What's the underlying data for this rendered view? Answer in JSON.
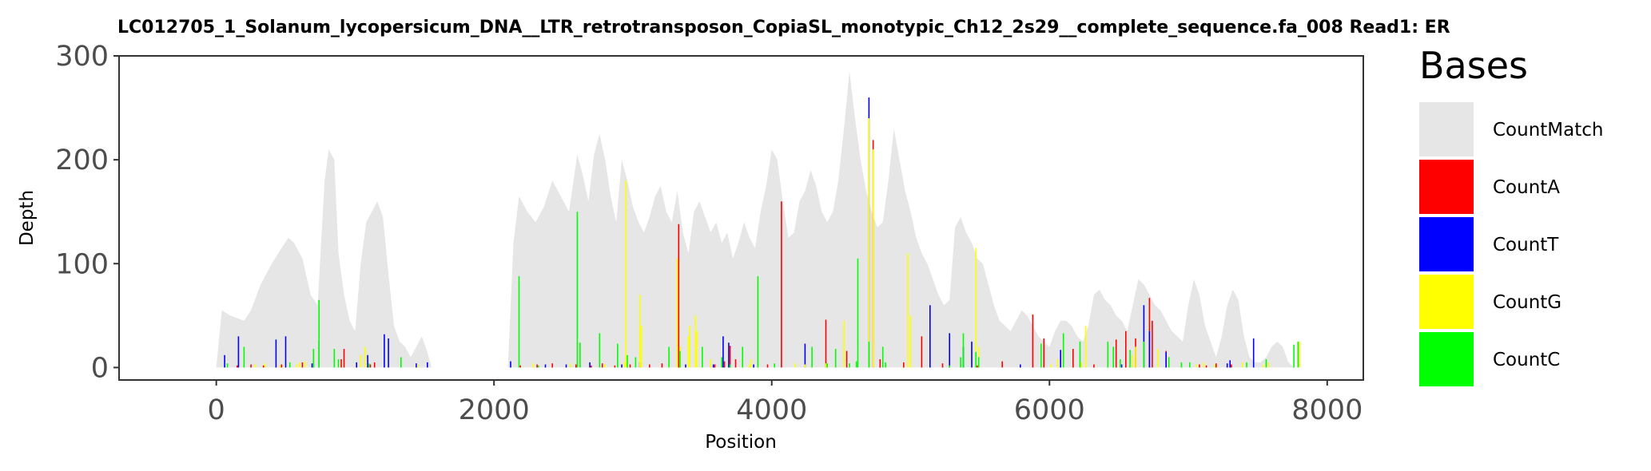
{
  "chart_data": {
    "type": "area",
    "title": "LC012705_1_Solanum_lycopersicum_DNA__LTR_retrotransposon_CopiaSL_monotypic_Ch12_2s29__complete_sequence.fa_008   Read1: ER",
    "xlabel": "Position",
    "ylabel": "Depth",
    "xlim": [
      -700,
      8260
    ],
    "ylim": [
      -12,
      300
    ],
    "xticks": [
      0,
      2000,
      4000,
      6000,
      8000
    ],
    "yticks": [
      0,
      100,
      200,
      300
    ],
    "grid": false,
    "legend": {
      "title": "Bases",
      "placement": "right",
      "entries": [
        {
          "name": "CountMatch",
          "color": "#e6e6e6"
        },
        {
          "name": "CountA",
          "color": "#ff0000"
        },
        {
          "name": "CountT",
          "color": "#0000ff"
        },
        {
          "name": "CountG",
          "color": "#ffff00"
        },
        {
          "name": "CountC",
          "color": "#00ff00"
        }
      ]
    },
    "coverage_profile": {
      "name": "CountMatch",
      "segments": [
        {
          "x": [
            0,
            40,
            100,
            200,
            250,
            320,
            400,
            470,
            520,
            560,
            620,
            680,
            730,
            780,
            810,
            850,
            880,
            920,
            960,
            1000,
            1040,
            1080,
            1120,
            1160,
            1200,
            1240,
            1280,
            1320,
            1360,
            1400,
            1440,
            1480,
            1520,
            1550
          ],
          "y": [
            0,
            55,
            50,
            45,
            55,
            80,
            100,
            115,
            125,
            120,
            105,
            70,
            60,
            180,
            210,
            200,
            110,
            70,
            45,
            35,
            100,
            140,
            150,
            160,
            145,
            90,
            40,
            25,
            20,
            10,
            20,
            30,
            15,
            0
          ]
        },
        {
          "x": [
            2100,
            2140,
            2180,
            2240,
            2300,
            2360,
            2420,
            2480,
            2540,
            2600,
            2640,
            2680,
            2720,
            2760,
            2800,
            2840,
            2880,
            2920,
            2960,
            3000,
            3040,
            3080,
            3120,
            3160,
            3200,
            3240,
            3280,
            3320,
            3360,
            3400,
            3440,
            3480,
            3520,
            3560,
            3600,
            3640,
            3680,
            3720,
            3760,
            3800,
            3840,
            3880,
            3920,
            3960,
            4000,
            4040,
            4080,
            4120,
            4160,
            4200,
            4240,
            4280,
            4320,
            4360,
            4400,
            4440,
            4480,
            4520,
            4560,
            4600,
            4640,
            4680,
            4720,
            4760,
            4800,
            4840,
            4880,
            4920,
            4960,
            5000,
            5040,
            5080,
            5120,
            5160,
            5200,
            5240,
            5280,
            5320,
            5360,
            5400,
            5440,
            5480,
            5520,
            5560,
            5600,
            5640,
            5680,
            5720,
            5760,
            5800,
            5840,
            5880,
            5920,
            5960,
            6000,
            6040,
            6080,
            6120,
            6160,
            6200,
            6240,
            6280,
            6320,
            6360,
            6400,
            6440,
            6480,
            6520,
            6560,
            6600,
            6640,
            6680,
            6720,
            6760,
            6800,
            6840,
            6880,
            6920,
            6960,
            7000,
            7040,
            7080,
            7120,
            7160,
            7200,
            7240,
            7280,
            7320,
            7360,
            7400,
            7440,
            7480,
            7520,
            7560,
            7600,
            7640,
            7680,
            7720,
            7760,
            7800,
            7840,
            7860
          ],
          "y": [
            0,
            120,
            165,
            150,
            140,
            155,
            180,
            165,
            150,
            205,
            185,
            160,
            205,
            225,
            200,
            165,
            140,
            200,
            180,
            155,
            140,
            130,
            145,
            165,
            175,
            150,
            140,
            170,
            130,
            110,
            150,
            160,
            145,
            130,
            140,
            120,
            130,
            105,
            120,
            140,
            125,
            115,
            150,
            175,
            210,
            200,
            160,
            125,
            130,
            160,
            170,
            190,
            175,
            150,
            140,
            150,
            180,
            230,
            285,
            240,
            200,
            170,
            150,
            135,
            140,
            180,
            230,
            200,
            170,
            150,
            125,
            110,
            100,
            85,
            70,
            60,
            65,
            135,
            145,
            130,
            120,
            105,
            100,
            80,
            60,
            45,
            40,
            35,
            45,
            55,
            50,
            40,
            30,
            25,
            20,
            35,
            45,
            45,
            40,
            30,
            25,
            40,
            70,
            75,
            65,
            60,
            50,
            45,
            35,
            60,
            85,
            80,
            70,
            60,
            55,
            45,
            35,
            30,
            25,
            60,
            85,
            70,
            40,
            25,
            10,
            30,
            60,
            75,
            65,
            30,
            10,
            5,
            5,
            10,
            20,
            25,
            20,
            5,
            0,
            0,
            0,
            0
          ]
        }
      ]
    },
    "mismatch_series": [
      {
        "name": "CountA",
        "color": "#ff0000",
        "x": [
          150,
          250,
          340,
          470,
          620,
          700,
          900,
          920,
          1110,
          1140,
          2190,
          2310,
          2420,
          2590,
          2700,
          2780,
          2870,
          2980,
          3120,
          3210,
          3330,
          3560,
          3590,
          3660,
          3700,
          3740,
          3970,
          4070,
          4390,
          4540,
          4730,
          4780,
          4950,
          5080,
          5230,
          5480,
          5660,
          5880,
          5960,
          6170,
          6320,
          6480,
          6550,
          6620,
          6720,
          6740,
          6840,
          7080,
          7130,
          7200,
          7310
        ],
        "y": [
          2,
          3,
          2,
          3,
          5,
          3,
          8,
          18,
          3,
          5,
          2,
          3,
          4,
          3,
          2,
          4,
          2,
          3,
          3,
          4,
          138,
          2,
          3,
          6,
          21,
          8,
          3,
          160,
          46,
          16,
          219,
          8,
          5,
          30,
          4,
          2,
          6,
          51,
          28,
          18,
          3,
          27,
          35,
          28,
          67,
          45,
          16,
          3,
          2,
          4,
          3
        ]
      },
      {
        "name": "CountT",
        "color": "#0000ff",
        "x": [
          60,
          160,
          430,
          500,
          690,
          740,
          1010,
          1090,
          1210,
          1240,
          1440,
          1520,
          2120,
          2370,
          2520,
          2690,
          2920,
          3050,
          3380,
          3580,
          3650,
          3690,
          3870,
          4240,
          4700,
          5140,
          5280,
          5380,
          5440,
          5790,
          6080,
          6520,
          6680,
          6720,
          6840,
          7280,
          7300,
          7470
        ],
        "y": [
          12,
          30,
          27,
          30,
          4,
          26,
          5,
          12,
          32,
          28,
          4,
          5,
          6,
          3,
          3,
          5,
          3,
          5,
          3,
          3,
          30,
          24,
          3,
          23,
          260,
          60,
          33,
          20,
          25,
          3,
          17,
          3,
          60,
          35,
          15,
          4,
          7,
          28
        ]
      },
      {
        "name": "CountG",
        "color": "#ffff00",
        "x": [
          280,
          350,
          460,
          580,
          600,
          640,
          1040,
          1070,
          1450,
          2280,
          2550,
          2800,
          2940,
          2950,
          3050,
          3060,
          3320,
          3340,
          3400,
          3410,
          3450,
          3460,
          3560,
          3840,
          3850,
          4170,
          4240,
          4390,
          4520,
          4700,
          4730,
          4980,
          5000,
          5470,
          5490,
          6010,
          6060,
          6230,
          6260,
          6600,
          6620,
          6780,
          7060,
          7110,
          7190,
          7390,
          7540,
          7580,
          7800
        ],
        "y": [
          3,
          4,
          2,
          3,
          5,
          6,
          12,
          20,
          3,
          4,
          4,
          3,
          5,
          180,
          70,
          40,
          105,
          20,
          30,
          40,
          50,
          35,
          8,
          3,
          8,
          4,
          3,
          4,
          45,
          240,
          210,
          110,
          50,
          115,
          20,
          3,
          8,
          5,
          40,
          12,
          20,
          18,
          3,
          5,
          3,
          5,
          3,
          5,
          25
        ]
      },
      {
        "name": "CountC",
        "color": "#00ff00",
        "x": [
          80,
          200,
          530,
          700,
          740,
          850,
          880,
          1100,
          1330,
          2180,
          2320,
          2600,
          2620,
          2760,
          2890,
          2960,
          3020,
          3260,
          3340,
          3500,
          3640,
          3700,
          3790,
          3900,
          4020,
          4290,
          4400,
          4460,
          4560,
          4610,
          4620,
          4700,
          4800,
          4820,
          5280,
          5360,
          5380,
          5470,
          5490,
          5940,
          6100,
          6220,
          6420,
          6460,
          6510,
          6580,
          6680,
          6860,
          6950,
          7010,
          7420,
          7560,
          7760,
          7790
        ],
        "y": [
          4,
          20,
          5,
          18,
          65,
          18,
          8,
          4,
          10,
          88,
          2,
          150,
          24,
          33,
          23,
          12,
          10,
          20,
          16,
          20,
          10,
          3,
          20,
          88,
          4,
          20,
          4,
          18,
          4,
          6,
          105,
          25,
          20,
          5,
          2,
          10,
          33,
          15,
          10,
          23,
          33,
          25,
          25,
          20,
          8,
          17,
          25,
          10,
          5,
          5,
          5,
          8,
          22,
          25
        ]
      }
    ]
  }
}
